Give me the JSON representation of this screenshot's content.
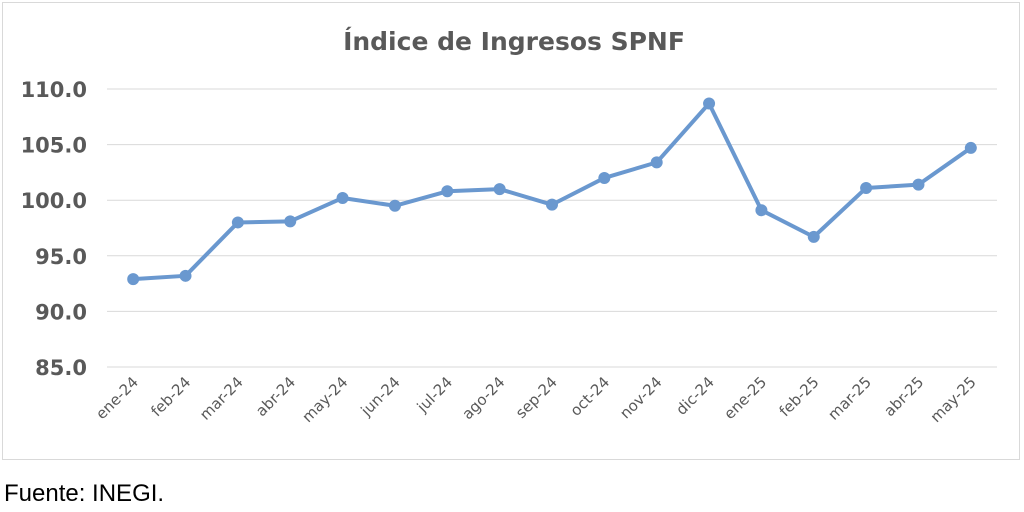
{
  "chart_data": {
    "type": "line",
    "title": "Índice de Ingresos SPNF",
    "xlabel": "",
    "ylabel": "",
    "categories": [
      "ene-24",
      "feb-24",
      "mar-24",
      "abr-24",
      "may-24",
      "jun-24",
      "jul-24",
      "ago-24",
      "sep-24",
      "oct-24",
      "nov-24",
      "dic-24",
      "ene-25",
      "feb-25",
      "mar-25",
      "abr-25",
      "may-25"
    ],
    "series": [
      {
        "values": [
          92.9,
          93.2,
          98.0,
          98.1,
          100.2,
          99.5,
          100.8,
          101.0,
          99.6,
          102.0,
          103.4,
          108.7,
          99.1,
          96.7,
          101.1,
          101.4,
          104.7
        ]
      }
    ],
    "ylim": [
      85,
      110
    ],
    "yticks": [
      "85.0",
      "90.0",
      "95.0",
      "100.0",
      "105.0",
      "110.0"
    ],
    "grid": true,
    "legend": "none",
    "colors": {
      "series": "#6a98cf",
      "grid": "#d9d9d9",
      "text": "#595959"
    }
  },
  "source_note": "Fuente: INEGI."
}
